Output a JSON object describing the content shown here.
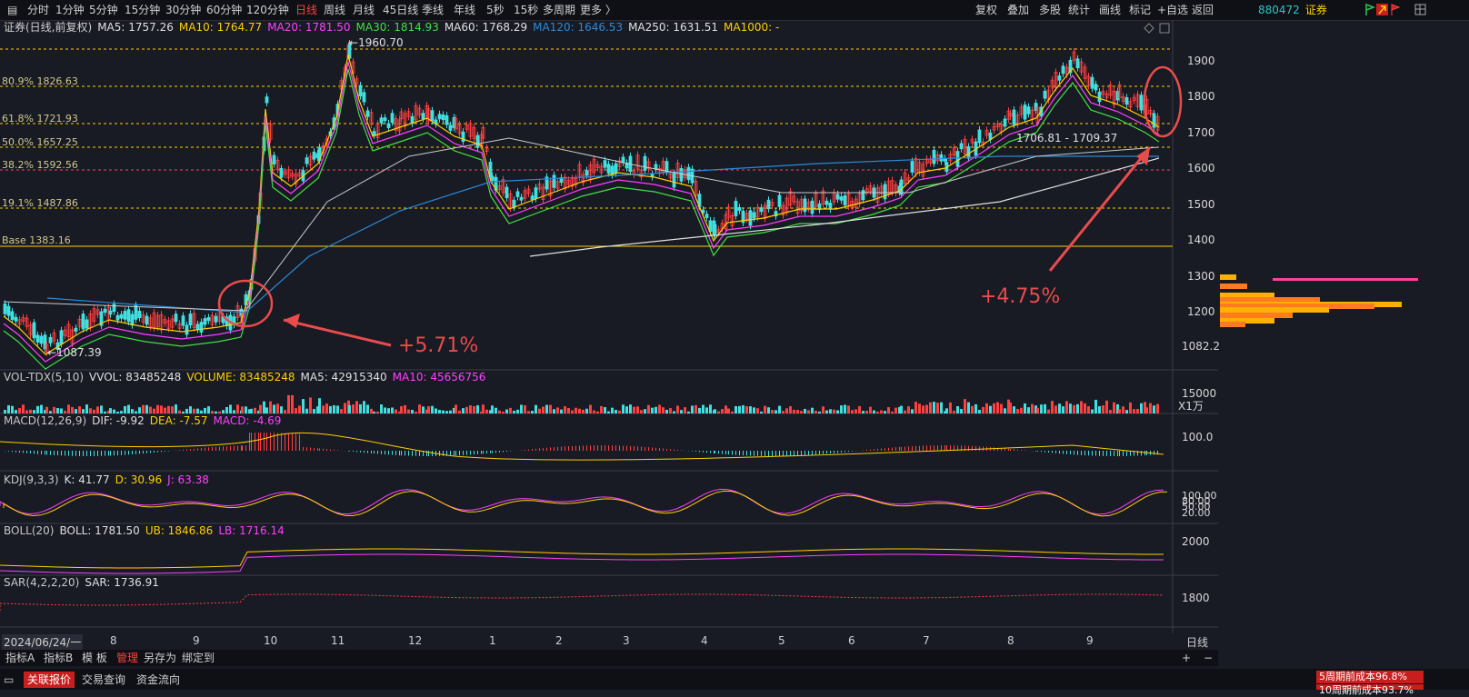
{
  "toolbar": {
    "periods": [
      "分时",
      "1分钟",
      "5分钟",
      "15分钟",
      "30分钟",
      "60分钟",
      "120分钟",
      "日线",
      "周线",
      "月线",
      "45日线",
      "季线",
      "年线",
      "5秒",
      "15秒",
      "多周期",
      "更多 〉"
    ],
    "active_period": "日线",
    "right_buttons": [
      "复权",
      "叠加",
      "多股",
      "统计",
      "画线",
      "标记",
      "+自选",
      "返回"
    ],
    "code": "880472",
    "name": "证券"
  },
  "main": {
    "title": "证券(日线,前复权)",
    "ma": [
      {
        "label": "MA5: 1757.26",
        "color": "#e0e0e0"
      },
      {
        "label": "MA10: 1764.77",
        "color": "#ffd000"
      },
      {
        "label": "MA20: 1781.50",
        "color": "#ff40ff"
      },
      {
        "label": "MA30: 1814.93",
        "color": "#40e040"
      },
      {
        "label": "MA60: 1768.29",
        "color": "#e0e0e0"
      },
      {
        "label": "MA120: 1646.53",
        "color": "#2a8ad8"
      },
      {
        "label": "MA250: 1631.51",
        "color": "#e0e0e0"
      },
      {
        "label": "MA1000: -",
        "color": "#ffd000"
      }
    ],
    "yaxis": [
      "1900",
      "1800",
      "1700",
      "1600",
      "1500",
      "1400",
      "1300",
      "1200"
    ],
    "low_label": "1082.2",
    "high_mark": "1960.70",
    "low_mark": "1087.39",
    "range_mark": "1706.81 - 1709.37",
    "fib_levels": [
      {
        "label": "80.9% 1826.63",
        "color": "#ffd000"
      },
      {
        "label": "61.8% 1721.93",
        "color": "#ffd000"
      },
      {
        "label": "50.0% 1657.25",
        "color": "#ffd000"
      },
      {
        "label": "38.2% 1592.56",
        "color": "#ff4060"
      },
      {
        "label": "19.1% 1487.86",
        "color": "#ffd000"
      },
      {
        "label": "Base 1383.16",
        "color": "#ffd000"
      }
    ],
    "annotation_left": "+5.71%",
    "annotation_right": "+4.75%"
  },
  "volume": {
    "title": "VOL-TDX(5,10)",
    "items": [
      {
        "label": "VVOL: 83485248",
        "color": "#e0e0e0"
      },
      {
        "label": "VOLUME: 83485248",
        "color": "#ffd000"
      },
      {
        "label": "MA5: 42915340",
        "color": "#e0e0e0"
      },
      {
        "label": "MA10: 45656756",
        "color": "#ff40ff"
      }
    ],
    "axis": "15000",
    "unit": "X1万"
  },
  "macd": {
    "title": "MACD(12,26,9)",
    "items": [
      {
        "label": "DIF: -9.92",
        "color": "#e0e0e0"
      },
      {
        "label": "DEA: -7.57",
        "color": "#ffd000"
      },
      {
        "label": "MACD: -4.69",
        "color": "#ff40ff"
      }
    ],
    "axis": "100.0"
  },
  "kdj": {
    "title": "KDJ(9,3,3)",
    "items": [
      {
        "label": "K: 41.77",
        "color": "#e0e0e0"
      },
      {
        "label": "D: 30.96",
        "color": "#ffd000"
      },
      {
        "label": "J: 63.38",
        "color": "#ff40ff"
      }
    ],
    "axis": [
      "100.00",
      "80.00",
      "50.00",
      "20.00"
    ]
  },
  "boll": {
    "title": "BOLL(20)",
    "items": [
      {
        "label": "BOLL: 1781.50",
        "color": "#e0e0e0"
      },
      {
        "label": "UB: 1846.86",
        "color": "#ffd000"
      },
      {
        "label": "LB: 1716.14",
        "color": "#ff40ff"
      }
    ],
    "axis": "2000"
  },
  "sar": {
    "title": "SAR(4,2,2,20)",
    "items": [
      {
        "label": "SAR: 1736.91",
        "color": "#e0e0e0"
      }
    ],
    "axis": "1800"
  },
  "dates": {
    "start": "2024/06/24/一",
    "months": [
      "8",
      "9",
      "10",
      "11",
      "12",
      "1",
      "2",
      "3",
      "4",
      "5",
      "6",
      "7",
      "8",
      "9"
    ],
    "period": "日线"
  },
  "bottom_tabs": [
    "指标A",
    "指标B",
    "模 板",
    "管理",
    "另存为",
    "绑定到"
  ],
  "bottom_active": "管理",
  "bottom_zoom": [
    "+",
    "−"
  ],
  "footer_tabs": [
    "关联报价",
    "交易查询",
    "资金流向"
  ],
  "footer_active": "关联报价",
  "cost_labels": [
    "5周期前成本96.8%",
    "10周期前成本93.7%"
  ]
}
